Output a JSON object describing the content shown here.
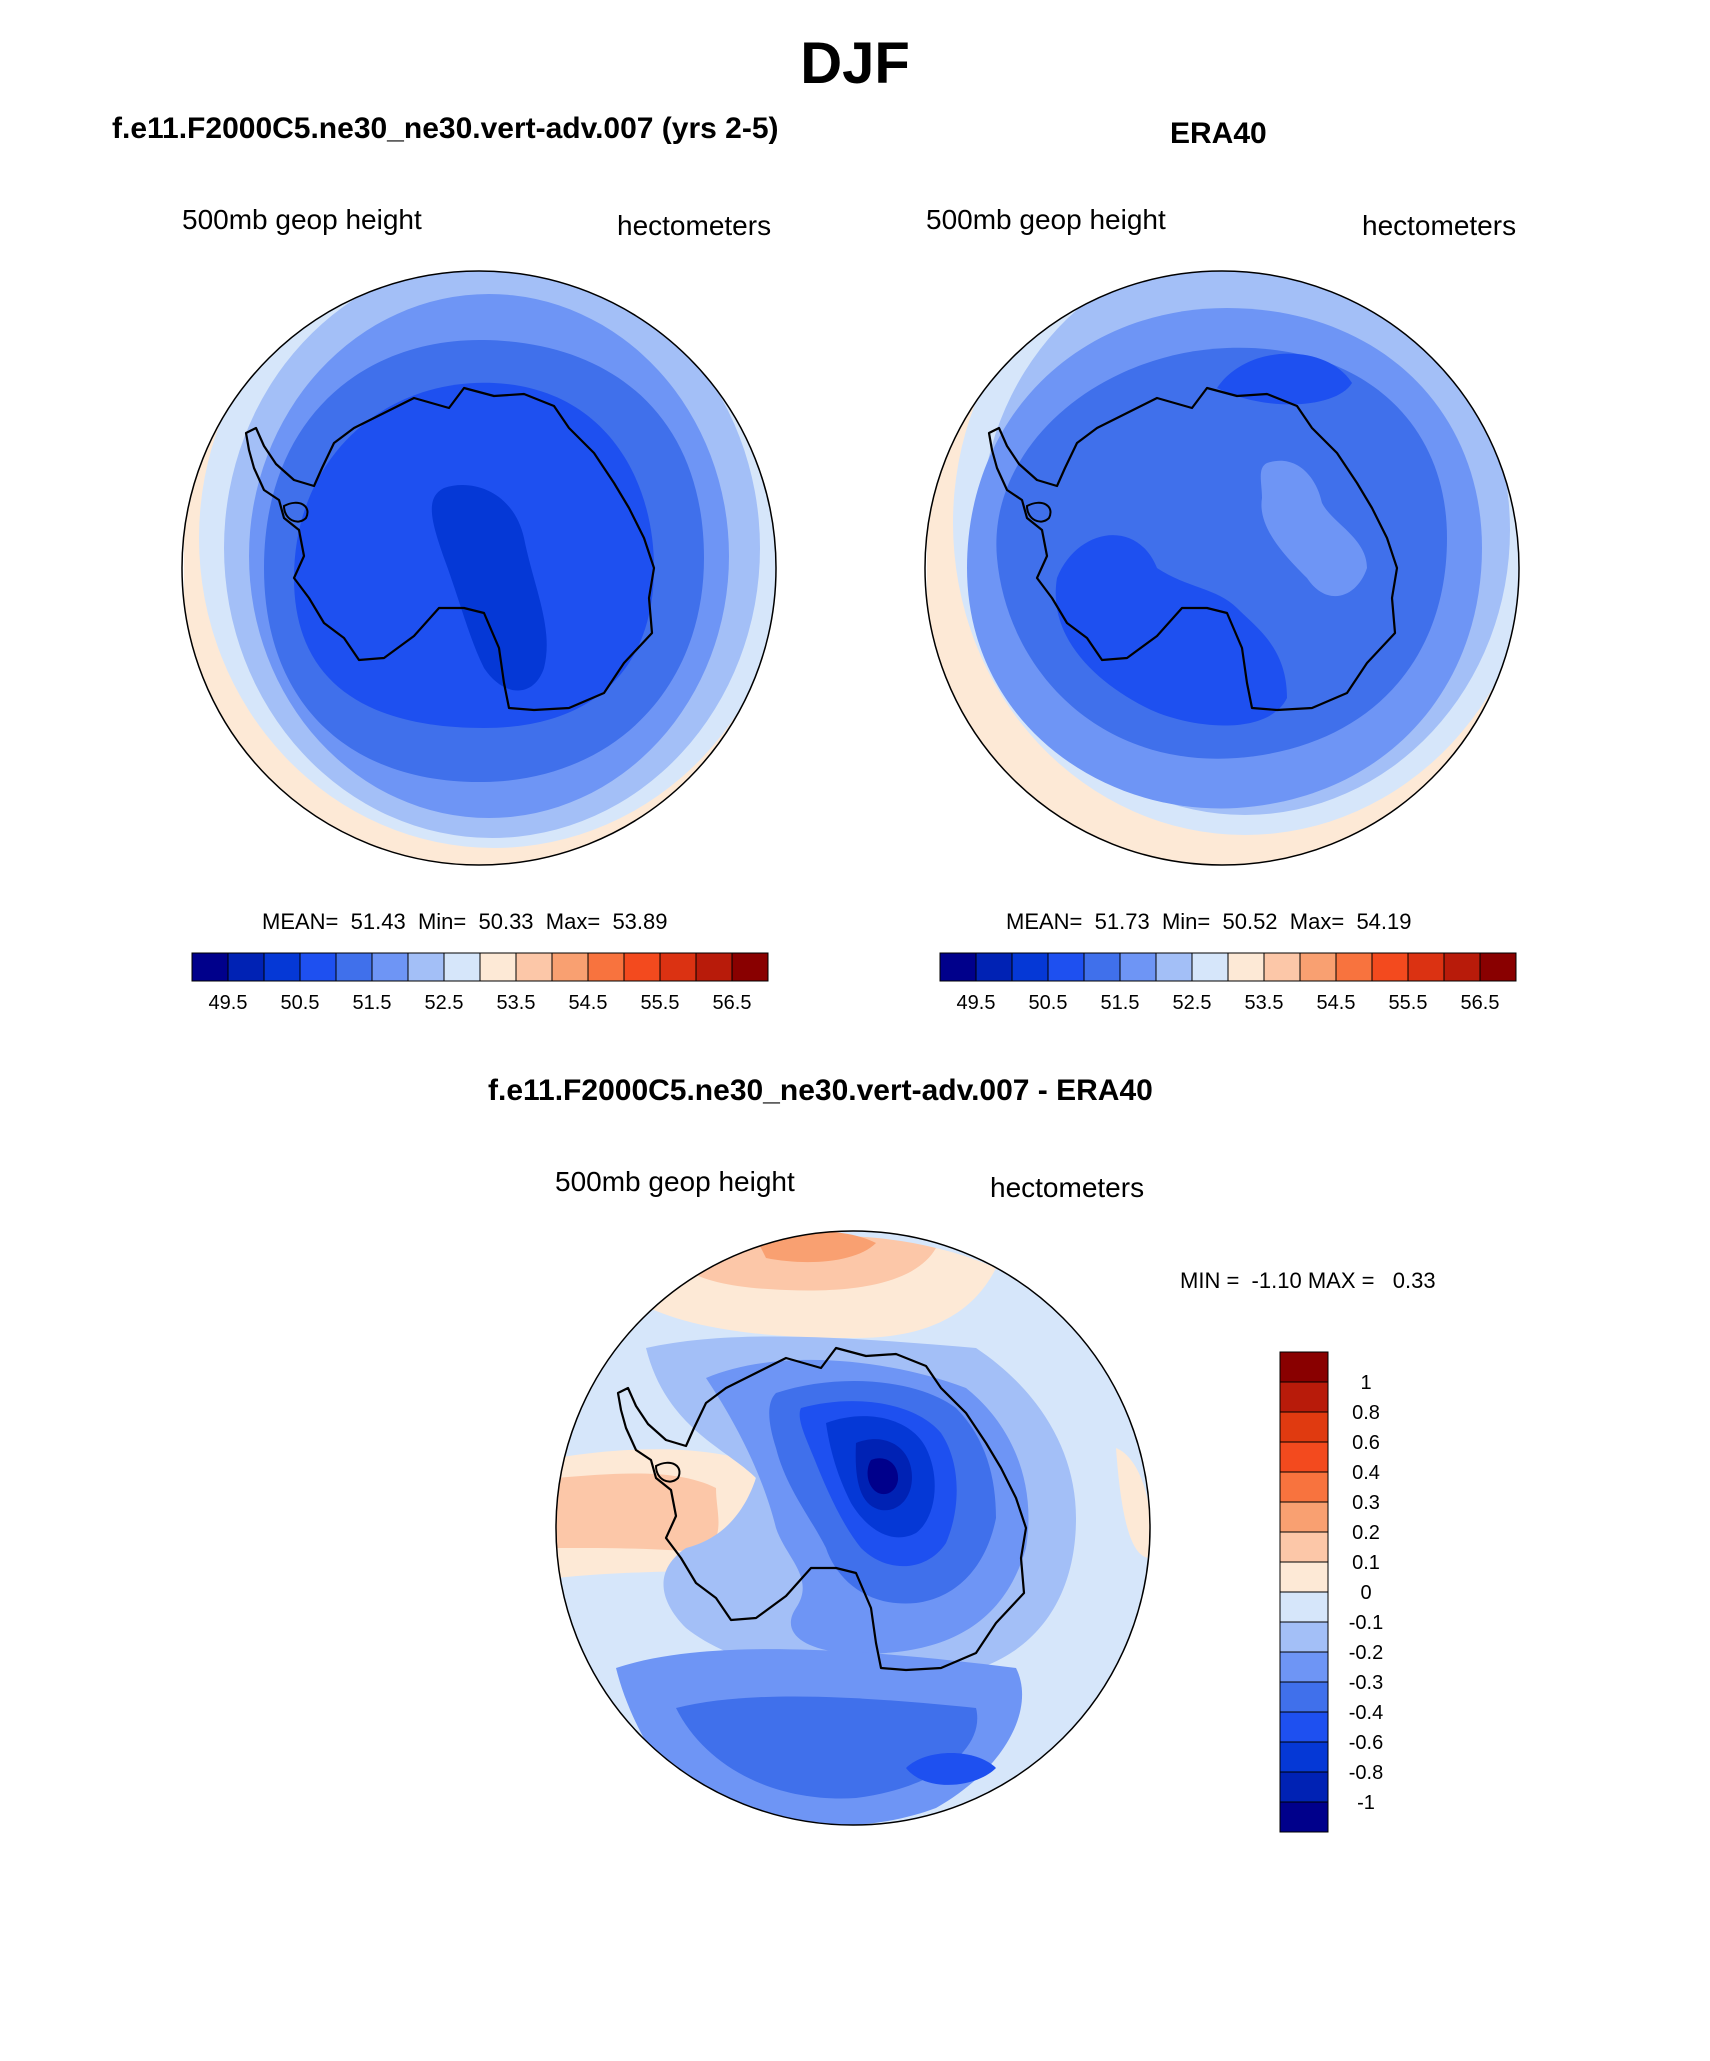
{
  "figure": {
    "season": "DJF",
    "units_label": "hectometers",
    "field_label": "500mb geop height"
  },
  "chart_data": [
    {
      "type": "contour-map",
      "title": "f.e11.F2000C5.ne30_ne30.vert-adv.007 (yrs 2-5)",
      "subtitle_left": "500mb geop height",
      "subtitle_right": "hectometers",
      "projection": "south polar stereographic",
      "stats": {
        "mean_label": "MEAN=",
        "mean": "51.43",
        "min_label": "Min=",
        "min": "50.33",
        "max_label": "Max=",
        "max": "53.89"
      },
      "colorbar": {
        "orientation": "horizontal",
        "levels": [
          49.5,
          50,
          50.5,
          51,
          51.5,
          52,
          52.5,
          53,
          53.5,
          54,
          54.5,
          55,
          55.5,
          56,
          56.5
        ],
        "tick_labels": [
          "49.5",
          "50.5",
          "51.5",
          "52.5",
          "53.5",
          "54.5",
          "55.5",
          "56.5"
        ],
        "colors": [
          "#00008b",
          "#0022b4",
          "#0538d6",
          "#1e50f0",
          "#4070eb",
          "#6e95f5",
          "#a3bff7",
          "#d6e6fa",
          "#fde9d6",
          "#fcc7a8",
          "#f9a071",
          "#f8733e",
          "#f34a1e",
          "#db3212",
          "#b81b0a",
          "#890000"
        ]
      }
    },
    {
      "type": "contour-map",
      "title": "ERA40",
      "subtitle_left": "500mb geop height",
      "subtitle_right": "hectometers",
      "projection": "south polar stereographic",
      "stats": {
        "mean_label": "MEAN=",
        "mean": "51.73",
        "min_label": "Min=",
        "min": "50.52",
        "max_label": "Max=",
        "max": "54.19"
      },
      "colorbar": {
        "orientation": "horizontal",
        "levels": [
          49.5,
          50,
          50.5,
          51,
          51.5,
          52,
          52.5,
          53,
          53.5,
          54,
          54.5,
          55,
          55.5,
          56,
          56.5
        ],
        "tick_labels": [
          "49.5",
          "50.5",
          "51.5",
          "52.5",
          "53.5",
          "54.5",
          "55.5",
          "56.5"
        ],
        "colors": [
          "#00008b",
          "#0022b4",
          "#0538d6",
          "#1e50f0",
          "#4070eb",
          "#6e95f5",
          "#a3bff7",
          "#d6e6fa",
          "#fde9d6",
          "#fcc7a8",
          "#f9a071",
          "#f8733e",
          "#f34a1e",
          "#db3212",
          "#b81b0a",
          "#890000"
        ]
      }
    },
    {
      "type": "contour-map",
      "title": "f.e11.F2000C5.ne30_ne30.vert-adv.007 - ERA40",
      "subtitle_left": "500mb geop height",
      "subtitle_right": "hectometers",
      "projection": "south polar stereographic",
      "stats": {
        "min_label": "MIN =",
        "min": "-1.10",
        "max_label": "MAX =",
        "max": "0.33"
      },
      "colorbar": {
        "orientation": "vertical",
        "levels": [
          1,
          0.8,
          0.6,
          0.4,
          0.3,
          0.2,
          0.1,
          0,
          -0.1,
          -0.2,
          -0.3,
          -0.4,
          -0.6,
          -0.8,
          -1
        ],
        "tick_labels": [
          "1",
          "0.8",
          "0.6",
          "0.4",
          "0.3",
          "0.2",
          "0.1",
          "0",
          "-0.1",
          "-0.2",
          "-0.3",
          "-0.4",
          "-0.6",
          "-0.8",
          "-1"
        ],
        "colors": [
          "#890000",
          "#b81b0a",
          "#e03a10",
          "#f34a1e",
          "#f8733e",
          "#f9a071",
          "#fcc7a8",
          "#fde9d6",
          "#d6e6fa",
          "#a3bff7",
          "#6e95f5",
          "#4070eb",
          "#1e50f0",
          "#0538d6",
          "#0022b4",
          "#00008b"
        ]
      }
    }
  ]
}
